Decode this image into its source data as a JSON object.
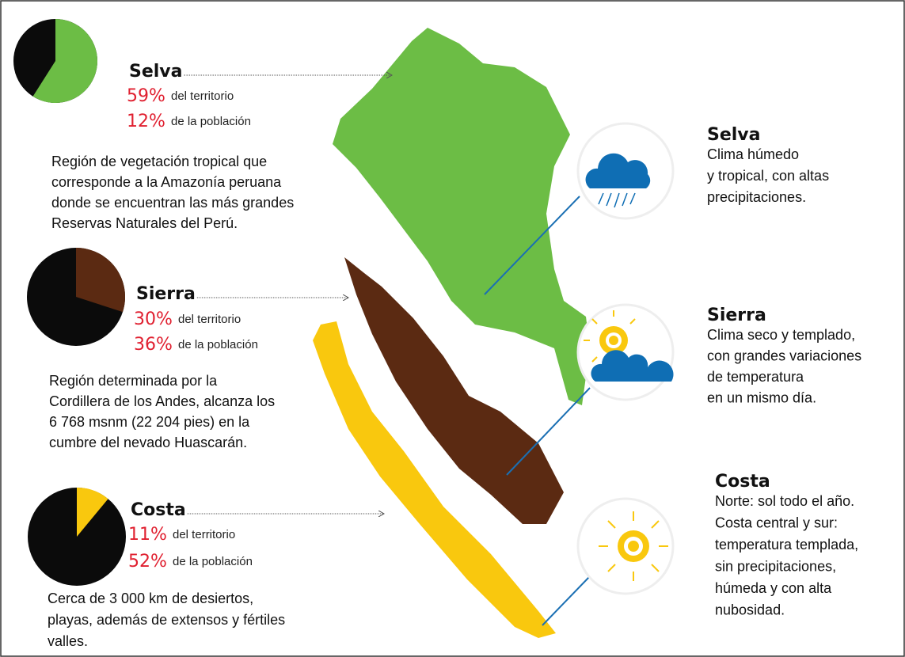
{
  "regions": [
    {
      "name": "Selva",
      "territory": {
        "value": 59,
        "label": "59%"
      },
      "territory_text": "del territorio",
      "population": "12%",
      "population_text": "de la población",
      "color": "#6cbd45",
      "description": [
        "Región de vegetación tropical que",
        "corresponde a la Amazonía peruana",
        "donde se encuentran las más grandes",
        "Reservas Naturales del Perú."
      ]
    },
    {
      "name": "Sierra",
      "territory": {
        "value": 30,
        "label": "30%"
      },
      "territory_text": "del territorio",
      "population": "36%",
      "population_text": "de la población",
      "color": "#5b2a12",
      "description": [
        "Región determinada por la",
        "Cordillera de los Andes, alcanza los",
        "6 768 msnm (22 204 pies) en la",
        "cumbre del nevado Huascarán."
      ]
    },
    {
      "name": "Costa",
      "territory": {
        "value": 11,
        "label": "11%"
      },
      "territory_text": "del territorio",
      "population": "52%",
      "population_text": "de la población",
      "color": "#f9c80e",
      "description": [
        "Cerca de 3 000 km de desiertos,",
        "playas, además de extensos y fértiles",
        "valles."
      ]
    }
  ],
  "climate": [
    {
      "name": "Selva",
      "lines": [
        "Clima húmedo",
        "y tropical, con altas",
        "precipitaciones."
      ]
    },
    {
      "name": "Sierra",
      "lines": [
        "Clima seco y templado,",
        "con grandes variaciones",
        "de temperatura",
        "en un mismo día."
      ]
    },
    {
      "name": "Costa",
      "lines": [
        "Norte: sol todo el año.",
        "Costa central y sur:",
        "temperatura templada,",
        "sin precipitaciones,",
        "húmeda y con alta",
        "nubosidad."
      ]
    }
  ]
}
